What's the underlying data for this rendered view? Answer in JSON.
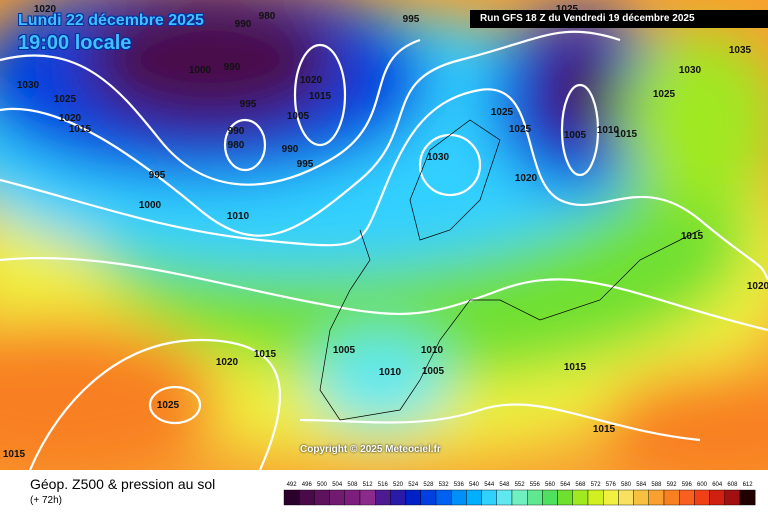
{
  "header": {
    "date": "Lundi 22 décembre 2025",
    "time": "19:00 locale",
    "run": "Run GFS 18 Z du Vendredi 19 décembre 2025"
  },
  "copyright": "Copyright © 2025 Meteociel.fr",
  "footer": {
    "title": "Géop. Z500 & pression au sol",
    "subtitle": "(+ 72h)"
  },
  "scale": {
    "values": [
      492,
      496,
      500,
      504,
      508,
      512,
      516,
      520,
      524,
      528,
      532,
      536,
      540,
      544,
      548,
      552,
      556,
      560,
      564,
      568,
      572,
      576,
      580,
      584,
      588,
      592,
      596,
      600,
      604,
      608,
      612
    ],
    "colors": [
      "#2b002b",
      "#4a0a4a",
      "#5e125e",
      "#701a70",
      "#7d1d7d",
      "#8a2a8a",
      "#4d1a8f",
      "#2a1aa8",
      "#0020c8",
      "#0040e0",
      "#0060f0",
      "#0090f8",
      "#00b0ff",
      "#30d0ff",
      "#60e8f0",
      "#70f0c0",
      "#60e890",
      "#50e060",
      "#70e030",
      "#a0e820",
      "#d0f020",
      "#f0f040",
      "#f8e060",
      "#f8c040",
      "#f8a030",
      "#f88020",
      "#f86020",
      "#f04018",
      "#d02010",
      "#a01010",
      "#200000"
    ]
  },
  "isobar_labels": [
    "1020",
    "1030",
    "1025",
    "1020",
    "1015",
    "995",
    "1000",
    "1000",
    "990",
    "990",
    "980",
    "995",
    "990",
    "980",
    "1020",
    "1015",
    "1005",
    "990",
    "995",
    "995",
    "1010",
    "1030",
    "1025",
    "1025",
    "1020",
    "1005",
    "1010",
    "1015",
    "1035",
    "1030",
    "1025",
    "1015",
    "1020",
    "1020",
    "1015",
    "1005",
    "1010",
    "1010",
    "1005",
    "1015",
    "1025",
    "1015",
    "1015",
    "1025"
  ]
}
